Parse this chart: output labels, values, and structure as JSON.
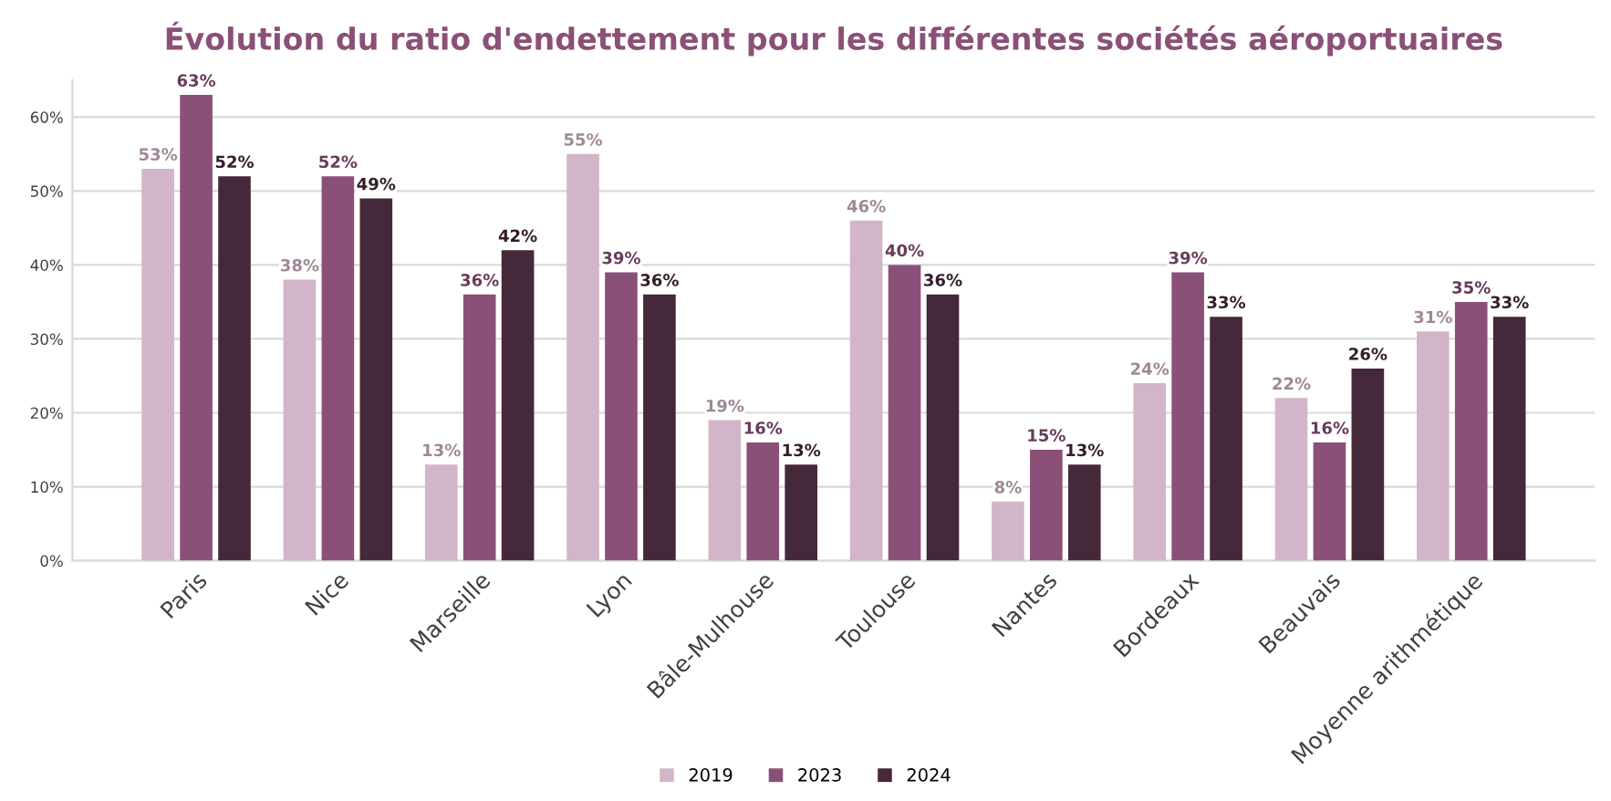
{
  "chart_data": {
    "type": "bar",
    "title": "Évolution du ratio d'endettement pour les différentes sociétés aéroportuaires",
    "categories": [
      "Paris",
      "Nice",
      "Marseille",
      "Lyon",
      "Bâle-Mulhouse",
      "Toulouse",
      "Nantes",
      "Bordeaux",
      "Beauvais",
      "Moyenne arithmétique"
    ],
    "series": [
      {
        "name": "2019",
        "color": "#d3b5c9",
        "values": [
          53,
          38,
          13,
          55,
          19,
          46,
          8,
          24,
          22,
          31
        ],
        "value_labels": [
          "53%",
          "38%",
          "13%",
          "55%",
          "19%",
          "46%",
          "8%",
          "24%",
          "22%",
          "31%"
        ]
      },
      {
        "name": "2023",
        "color": "#8b5078",
        "values": [
          63,
          52,
          36,
          39,
          16,
          40,
          15,
          39,
          16,
          35
        ],
        "value_labels": [
          "63%",
          "52%",
          "36%",
          "39%",
          "16%",
          "40%",
          "15%",
          "39%",
          "16%",
          "35%"
        ]
      },
      {
        "name": "2024",
        "color": "#45283a",
        "values": [
          52,
          49,
          42,
          36,
          13,
          36,
          13,
          33,
          26,
          33
        ],
        "value_labels": [
          "52%",
          "49%",
          "42%",
          "36%",
          "13%",
          "36%",
          "13%",
          "33%",
          "26%",
          "33%"
        ]
      }
    ],
    "ylim": [
      0,
      65
    ],
    "yticks": [
      {
        "value": 0,
        "label": "0%"
      },
      {
        "value": 10,
        "label": "10%"
      },
      {
        "value": 20,
        "label": "20%"
      },
      {
        "value": 30,
        "label": "30%"
      },
      {
        "value": 40,
        "label": "40%"
      },
      {
        "value": 50,
        "label": "50%"
      },
      {
        "value": 60,
        "label": "60%"
      }
    ],
    "grid": "y",
    "legend": "bottom"
  }
}
